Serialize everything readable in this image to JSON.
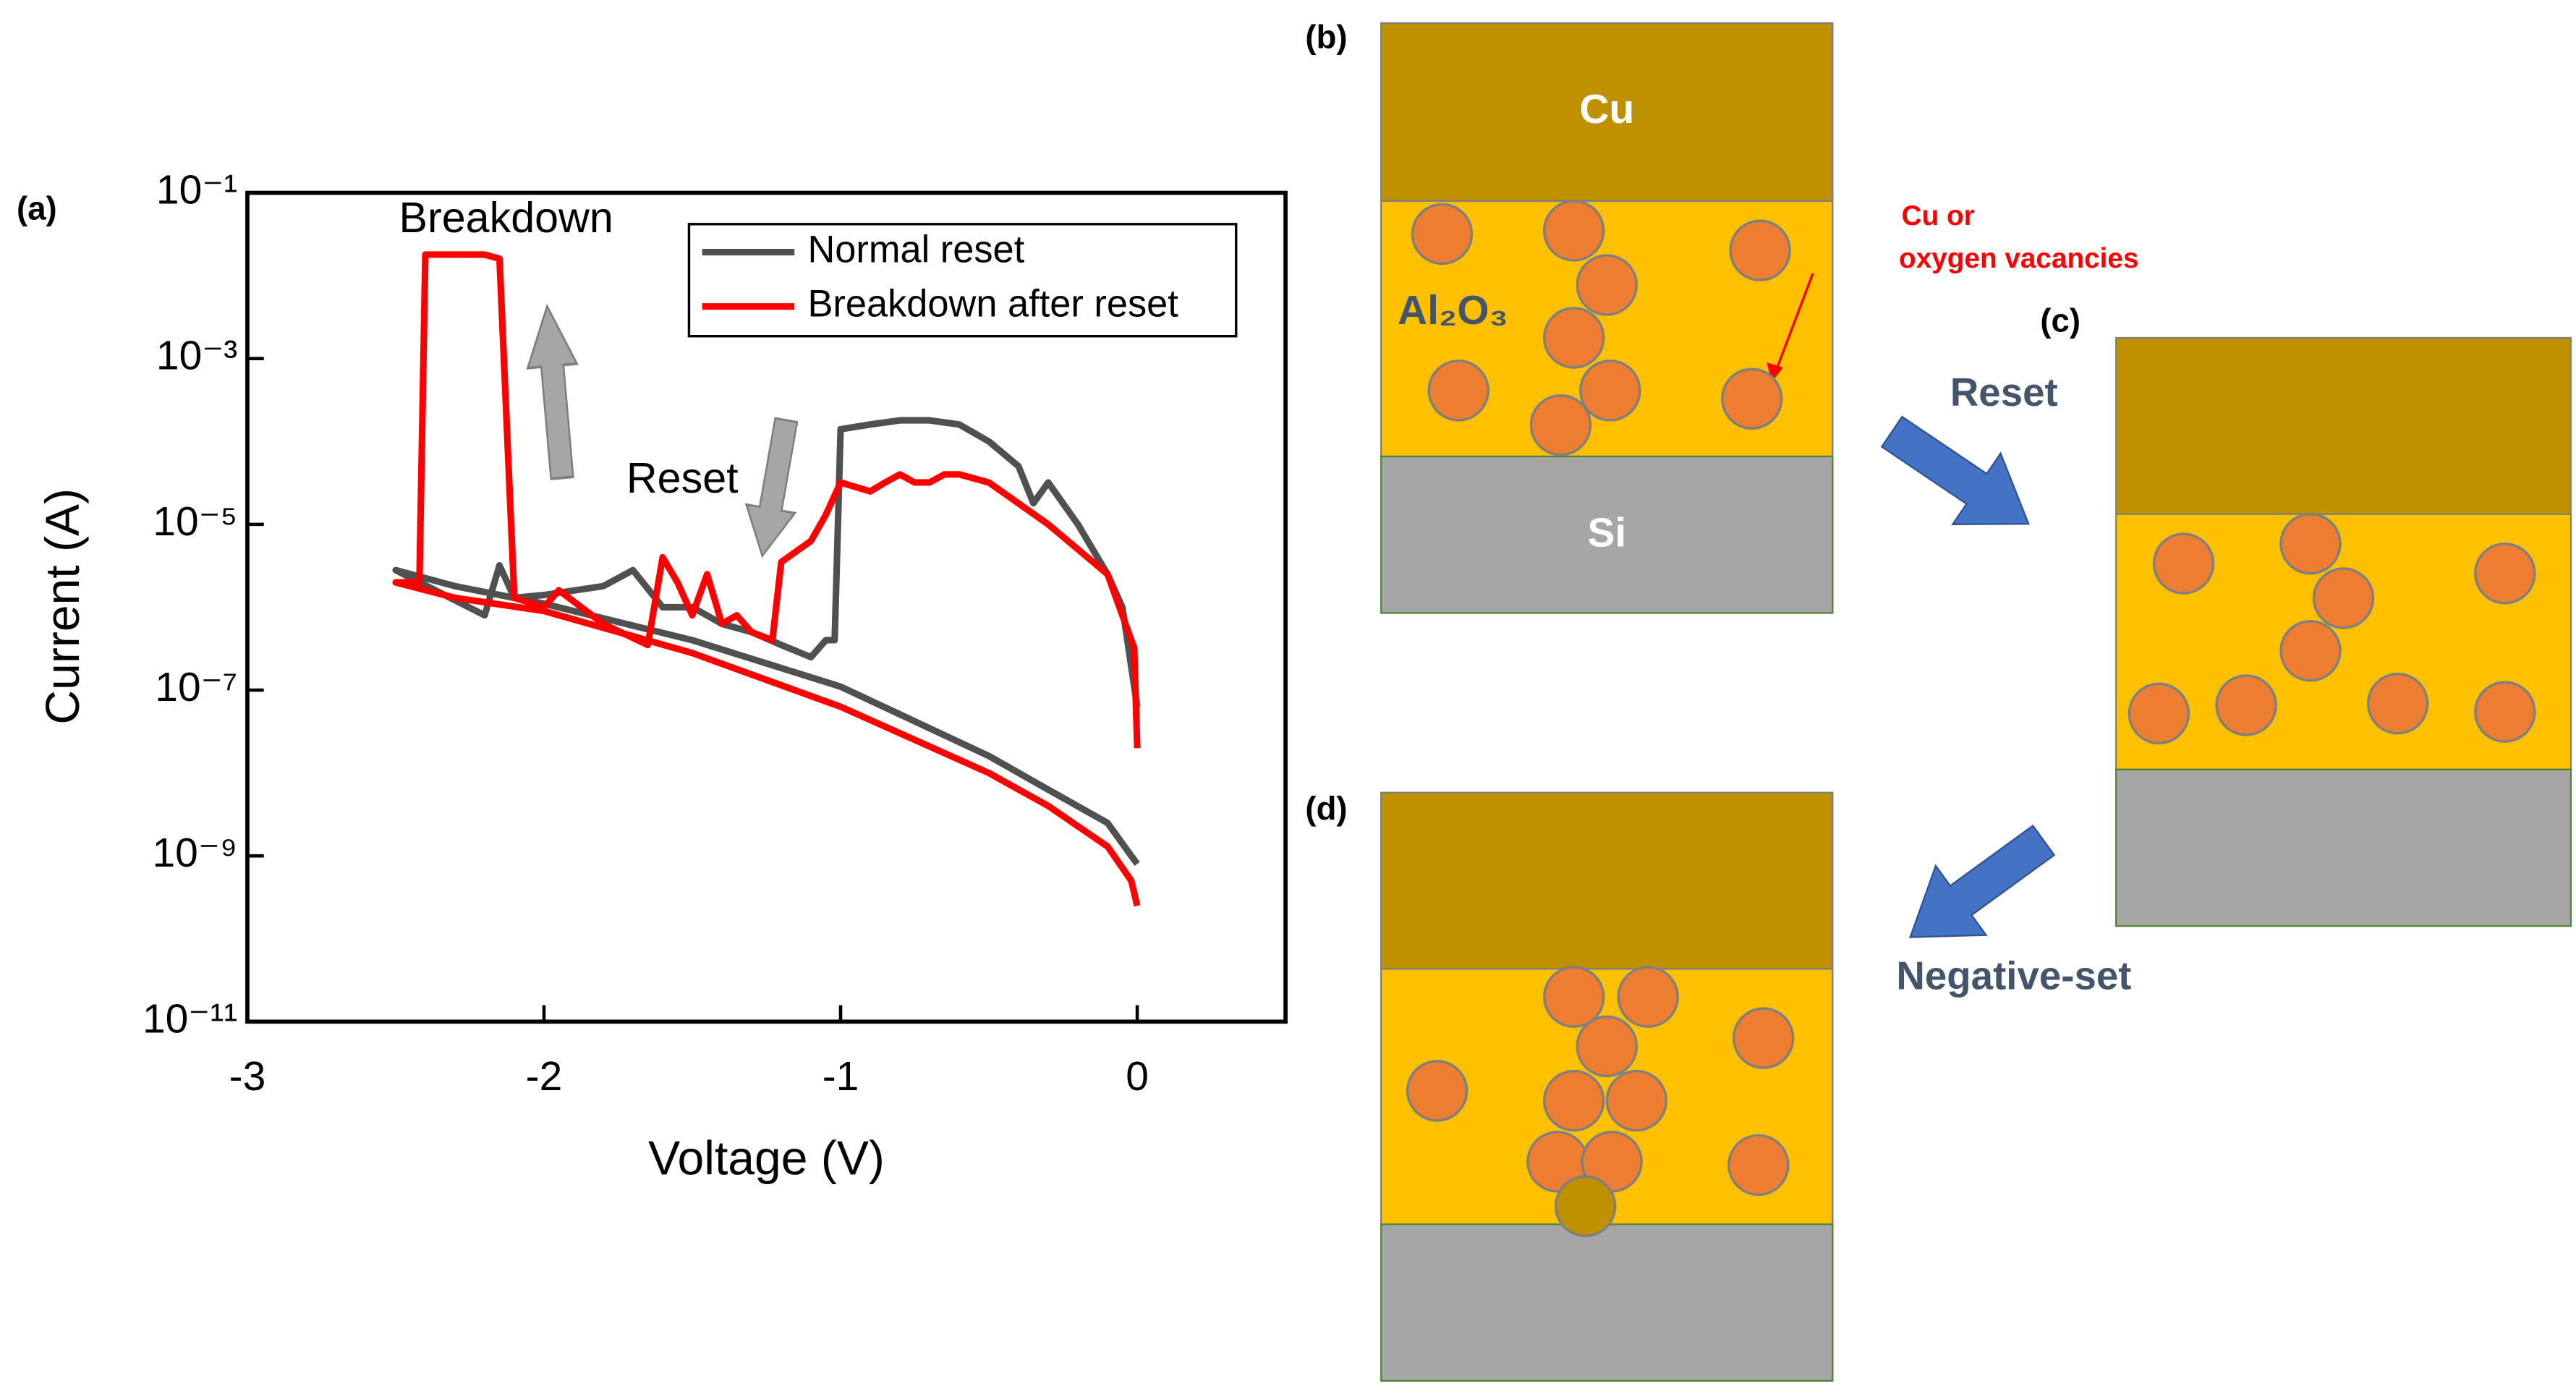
{
  "chart_data": {
    "type": "line",
    "panel_label": "(a)",
    "xlabel": "Voltage (V)",
    "ylabel": "Current (A)",
    "xlim": [
      -3,
      0.5
    ],
    "ylim": [
      1e-11,
      0.1
    ],
    "xticks": [
      -3,
      -2,
      -1,
      0
    ],
    "yticks": [
      {
        "value": 1e-11,
        "label": "10⁻¹¹"
      },
      {
        "value": 1e-09,
        "label": "10⁻⁹"
      },
      {
        "value": 1e-07,
        "label": "10⁻⁷"
      },
      {
        "value": 1e-05,
        "label": "10⁻⁵"
      },
      {
        "value": 0.001,
        "label": "10⁻³"
      },
      {
        "value": 0.1,
        "label": "10⁻¹"
      }
    ],
    "log_y": true,
    "legend": "upper right",
    "annotations": [
      "Breakdown",
      "Reset"
    ],
    "series": [
      {
        "name": "Normal reset",
        "color": "#505050",
        "x": [
          0,
          -0.05,
          -0.1,
          -0.2,
          -0.3,
          -0.35,
          -0.4,
          -0.5,
          -0.6,
          -0.7,
          -0.8,
          -0.9,
          -1.0,
          -1.02,
          -1.05,
          -1.1,
          -1.2,
          -1.3,
          -1.4,
          -1.5,
          -1.6,
          -1.7,
          -1.8,
          -2.0,
          -2.1,
          -2.15,
          -2.2,
          -2.5,
          -2.3,
          -2.0,
          -1.5,
          -1.0,
          -0.5,
          -0.3,
          -0.1,
          -0.02,
          0
        ],
        "values": [
          6.3e-08,
          1e-06,
          2.5e-06,
          1e-05,
          3.2e-05,
          1.8e-05,
          5e-05,
          0.0001,
          0.00016,
          0.00018,
          0.00018,
          0.00016,
          0.00014,
          4e-07,
          4e-07,
          2.5e-07,
          3.5e-07,
          5e-07,
          6.3e-07,
          1e-06,
          1e-06,
          2.8e-06,
          1.8e-06,
          1.4e-06,
          1.3e-06,
          3.2e-06,
          8e-07,
          2.8e-06,
          1.8e-06,
          1.1e-06,
          4e-07,
          1.1e-07,
          1.6e-08,
          6.3e-09,
          2.5e-09,
          1e-09,
          8e-10
        ]
      },
      {
        "name": "Breakdown after reset",
        "color": "#ff0000",
        "x": [
          0,
          -0.01,
          -0.1,
          -0.3,
          -0.5,
          -0.6,
          -0.65,
          -0.7,
          -0.75,
          -0.8,
          -0.85,
          -0.9,
          -1.0,
          -1.05,
          -1.1,
          -1.2,
          -1.23,
          -1.3,
          -1.35,
          -1.4,
          -1.45,
          -1.5,
          -1.55,
          -1.6,
          -1.65,
          -1.8,
          -1.95,
          -2.0,
          -2.1,
          -2.15,
          -2.2,
          -2.3,
          -2.4,
          -2.42,
          -2.5,
          -2.3,
          -2.0,
          -1.5,
          -1.0,
          -0.5,
          -0.3,
          -0.1,
          -0.02,
          0
        ],
        "values": [
          2e-08,
          3.2e-07,
          2.5e-06,
          1e-05,
          3.2e-05,
          4e-05,
          4e-05,
          3.2e-05,
          3.2e-05,
          4e-05,
          3.2e-05,
          2.5e-05,
          3.2e-05,
          1.3e-05,
          6.3e-06,
          3.5e-06,
          4e-07,
          5e-07,
          8e-07,
          6.3e-07,
          2.5e-06,
          8e-07,
          2e-06,
          4e-06,
          3.5e-07,
          6.3e-07,
          1.6e-06,
          1e-06,
          1.3e-06,
          0.016,
          0.018,
          0.018,
          0.018,
          2e-06,
          2e-06,
          1.3e-06,
          9e-07,
          2.8e-07,
          6.3e-08,
          1e-08,
          4e-09,
          1.3e-09,
          5e-10,
          2.5e-10
        ]
      }
    ]
  },
  "panels": [
    {
      "label": "(b)",
      "layers": [
        "Cu",
        "Al₂O₃",
        "Si"
      ],
      "note": [
        "Cu or",
        "oxygen vacancies"
      ]
    },
    {
      "label": "(c)"
    },
    {
      "label": "(d)"
    }
  ],
  "steps": [
    "Reset",
    "Negative-set"
  ]
}
